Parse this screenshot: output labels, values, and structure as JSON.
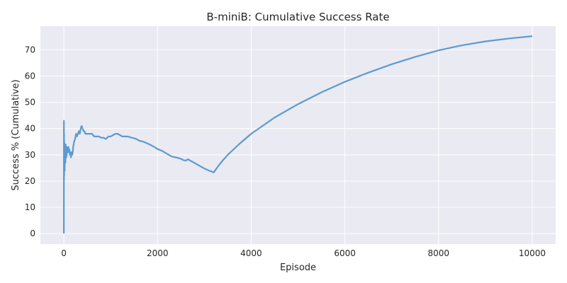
{
  "chart_data": {
    "type": "line",
    "title": "B-miniB: Cumulative Success Rate",
    "xlabel": "Episode",
    "ylabel": "Success % (Cumulative)",
    "xlim": [
      -500,
      10500
    ],
    "ylim": [
      -4,
      79
    ],
    "xticks": [
      0,
      2000,
      4000,
      6000,
      8000,
      10000
    ],
    "yticks": [
      0,
      10,
      20,
      30,
      40,
      50,
      60,
      70
    ],
    "grid": true,
    "legend": "none",
    "colors": {
      "line": "#5b9bd0",
      "plot_bg": "#eaeaf2",
      "grid": "#ffffff"
    },
    "series": [
      {
        "x": [
          1,
          2,
          3,
          5,
          8,
          10,
          12,
          15,
          18,
          20,
          25,
          30,
          35,
          40,
          45,
          50,
          55,
          60,
          65,
          70,
          80,
          90,
          100,
          110,
          120,
          130,
          140,
          150,
          160,
          170,
          180,
          190,
          200,
          220,
          240,
          260,
          280,
          300,
          320,
          340,
          360,
          380,
          400,
          420,
          440,
          460,
          480,
          500,
          550,
          600,
          650,
          700,
          750,
          800,
          850,
          900,
          950,
          1000,
          1050,
          1100,
          1150,
          1200,
          1250,
          1300,
          1350,
          1400,
          1450,
          1500,
          1550,
          1600,
          1650,
          1700,
          1750,
          1800,
          1850,
          1900,
          1950,
          2000,
          2100,
          2200,
          2300,
          2400,
          2500,
          2550,
          2600,
          2650,
          2700,
          2800,
          2900,
          3000,
          3100,
          3200,
          3300,
          3400,
          3500,
          3750,
          4000,
          4500,
          5000,
          5500,
          6000,
          6500,
          7000,
          7500,
          8000,
          8500,
          9000,
          9500,
          10000
        ],
        "y": [
          0,
          43,
          20,
          38,
          22,
          35,
          25,
          33,
          24,
          31,
          28,
          33,
          27,
          34,
          30,
          33,
          29,
          32,
          30,
          33,
          31,
          32,
          33,
          31,
          32,
          30,
          31,
          29,
          30,
          31,
          30,
          31,
          33,
          35,
          36,
          38,
          37,
          38,
          39,
          38,
          40,
          41,
          40,
          39,
          39,
          38,
          38,
          38,
          38,
          38,
          37,
          37,
          37,
          36.5,
          36.5,
          36,
          37,
          37,
          37.5,
          38,
          38,
          37.5,
          37,
          37,
          37,
          36.8,
          36.5,
          36.3,
          36,
          35.5,
          35.2,
          35,
          34.6,
          34.2,
          33.8,
          33.3,
          32.8,
          32.2,
          31.5,
          30.4,
          29.4,
          29,
          28.5,
          28,
          27.8,
          28.3,
          27.8,
          26.8,
          25.8,
          24.8,
          24,
          23.3,
          25.8,
          28,
          30,
          34.2,
          38,
          44.2,
          49.3,
          53.8,
          57.8,
          61.3,
          64.5,
          67.3,
          69.8,
          71.7,
          73.2,
          74.3,
          75.2
        ]
      }
    ]
  }
}
